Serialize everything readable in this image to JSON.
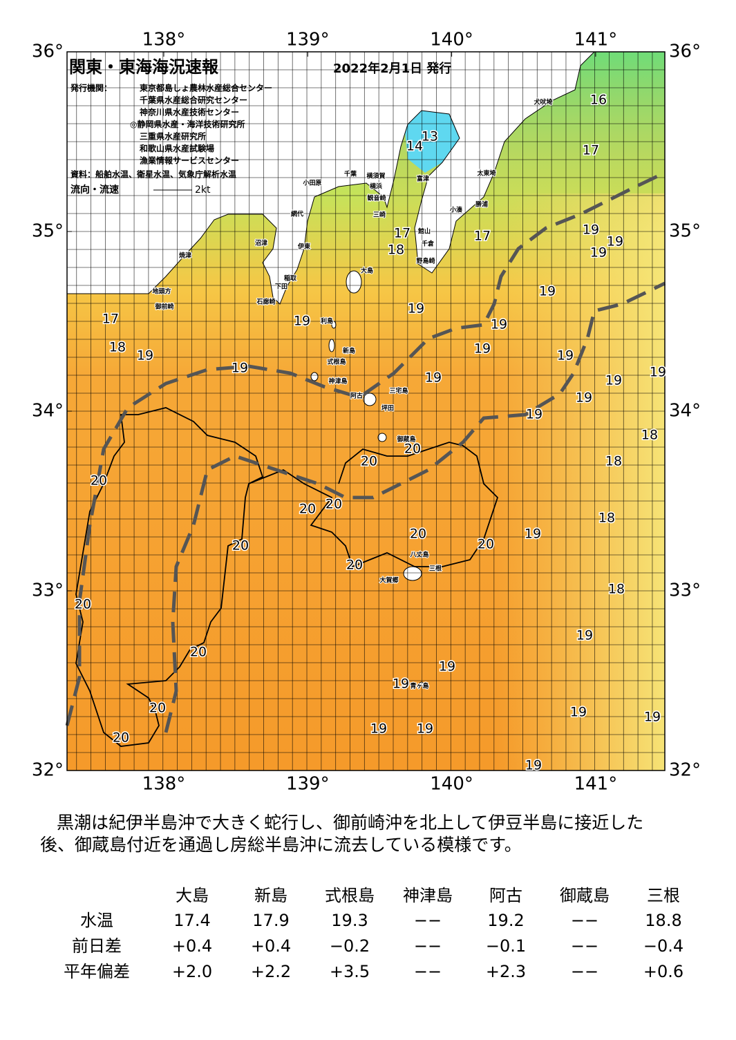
{
  "map": {
    "title": "関東・東海海況速報",
    "date": "2022年2月1日 発行",
    "issuer_label": "発行機関：",
    "issuers": [
      "東京都島しょ農林水産総合センター",
      "千葉県水産総合研究センター",
      "神奈川県水産技術センター",
      "◎静岡県水産・海洋技術研究所",
      "三重県水産研究所",
      "和歌山県水産試験場",
      "漁業情報サービスセンター"
    ],
    "source": "資料：船舶水温、衛星水温、気象庁解析水温",
    "flow_label": "流向・流速",
    "flow_unit": "2kt",
    "lon_ticks": [
      {
        "value": 138,
        "label": "138°"
      },
      {
        "value": 139,
        "label": "139°"
      },
      {
        "value": 140,
        "label": "140°"
      },
      {
        "value": 141,
        "label": "141°"
      }
    ],
    "lat_ticks": [
      {
        "value": 36,
        "label": "36°"
      },
      {
        "value": 35,
        "label": "35°"
      },
      {
        "value": 34,
        "label": "34°"
      },
      {
        "value": 33,
        "label": "33°"
      },
      {
        "value": 32,
        "label": "32°"
      }
    ],
    "temperatures": [
      16,
      13,
      14,
      17,
      17,
      18,
      17,
      19,
      19,
      19,
      19,
      19,
      19,
      17,
      18,
      19,
      19,
      19,
      19,
      19,
      19,
      19,
      19,
      19,
      19,
      18,
      20,
      20,
      18,
      20,
      20,
      20,
      18,
      19,
      20,
      20,
      20,
      20,
      18,
      20,
      19,
      20,
      19,
      19,
      20,
      19,
      19,
      19,
      19,
      20,
      19
    ],
    "places": [
      "犬吠埼",
      "太東埼",
      "勝浦",
      "小湊",
      "富津",
      "館山",
      "千倉",
      "野島崎",
      "三崎",
      "千葉",
      "横須賀",
      "観音崎",
      "横浜",
      "小田原",
      "網代",
      "伊東",
      "沼津",
      "焼津",
      "御前崎",
      "地頭方",
      "稲取",
      "下田",
      "石廊崎",
      "大島",
      "利島",
      "新島",
      "式根島",
      "神津島",
      "阿古",
      "三宅島",
      "坪田",
      "御蔵島",
      "八丈島",
      "三根",
      "大賀郷",
      "青ヶ島"
    ]
  },
  "description": [
    "黒潮は紀伊半島沖で大きく蛇行し、御前崎沖を北上して伊豆半島に接近した",
    "後、御蔵島付近を通過し房総半島沖に流去している模様です。"
  ],
  "table": {
    "columns": [
      "大島",
      "新島",
      "式根島",
      "神津島",
      "阿古",
      "御蔵島",
      "三根"
    ],
    "rows": [
      {
        "label": "水温",
        "values": [
          "17.4",
          "17.9",
          "19.3",
          "−−",
          "19.2",
          "−−",
          "18.8"
        ]
      },
      {
        "label": "前日差",
        "values": [
          "+0.4",
          "+0.4",
          "−0.2",
          "−−",
          "−0.1",
          "−−",
          "−0.4"
        ]
      },
      {
        "label": "平年偏差",
        "values": [
          "+2.0",
          "+2.2",
          "+3.5",
          "−−",
          "+2.3",
          "−−",
          "+0.6"
        ]
      }
    ]
  }
}
